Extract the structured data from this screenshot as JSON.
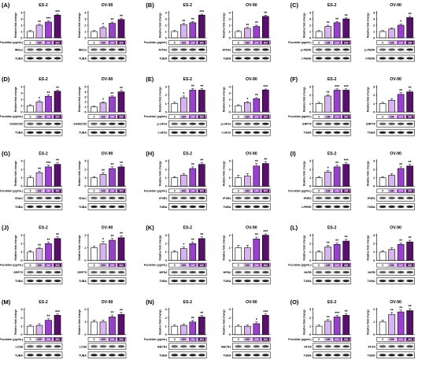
{
  "dose_label": "Fucoidan (μg/mL)",
  "doses": [
    "0",
    "100",
    "200",
    "300"
  ],
  "ylabel": "Relative fold change",
  "loading_control": "TUBA",
  "bar_colors": [
    "#ffffff",
    "#d9b3f0",
    "#9b3fd3",
    "#5a0f6e"
  ],
  "chart_data": [
    {
      "letter": "(A)",
      "type": "bar",
      "cell": "ES-2",
      "protein": "IRE1α",
      "ylim": [
        0,
        4
      ],
      "ticks": [
        0,
        1,
        2,
        3,
        4
      ],
      "values": [
        1.0,
        2.0,
        2.5,
        3.6
      ],
      "errors": [
        0.15,
        0.15,
        0.2,
        0.15
      ],
      "marks": [
        "",
        "**",
        "***",
        "***"
      ],
      "bottom": [
        "IRE1α",
        "TUBA"
      ]
    },
    {
      "letter": "",
      "type": "bar",
      "cell": "OV-90",
      "protein": "IRE1α",
      "ylim": [
        0,
        4
      ],
      "ticks": [
        0,
        1,
        2,
        3,
        4
      ],
      "values": [
        1.0,
        1.6,
        2.3,
        2.9
      ],
      "errors": [
        0.15,
        0.2,
        0.2,
        0.2
      ],
      "marks": [
        "",
        "*",
        "**",
        "**"
      ],
      "bottom": [
        "IRE1α",
        "TUBA"
      ]
    },
    {
      "letter": "(B)",
      "type": "bar",
      "cell": "ES-2",
      "protein": "ATF6α",
      "ylim": [
        0,
        4
      ],
      "ticks": [
        0,
        1,
        2,
        3,
        4
      ],
      "values": [
        1.0,
        2.1,
        2.4,
        3.6
      ],
      "errors": [
        0.15,
        0.2,
        0.2,
        0.15
      ],
      "marks": [
        "",
        "**",
        "**",
        "***"
      ],
      "bottom": [
        "ATF6α",
        "TUBA"
      ]
    },
    {
      "letter": "",
      "type": "bar",
      "cell": "OV-90",
      "protein": "ATF6α",
      "ylim": [
        0,
        4
      ],
      "ticks": [
        0,
        1,
        2,
        3,
        4
      ],
      "values": [
        1.0,
        1.5,
        1.8,
        3.4
      ],
      "errors": [
        0.15,
        0.15,
        0.2,
        0.2
      ],
      "marks": [
        "",
        "**",
        "**",
        "**"
      ],
      "bottom": [
        "ATF6α",
        "TUBA"
      ]
    },
    {
      "letter": "(C)",
      "type": "bar",
      "cell": "ES-2",
      "protein": "p-PERK",
      "ylim": [
        0,
        4
      ],
      "ticks": [
        0,
        1,
        2,
        3,
        4
      ],
      "values": [
        1.0,
        1.8,
        2.4,
        3.0
      ],
      "errors": [
        0.15,
        0.2,
        0.2,
        0.15
      ],
      "marks": [
        "",
        "**",
        "**",
        "**"
      ],
      "bottom": [
        "p-PERK",
        "t-PERK"
      ]
    },
    {
      "letter": "",
      "type": "bar",
      "cell": "OV-90",
      "protein": "p-PERK",
      "ylim": [
        0,
        4
      ],
      "ticks": [
        0,
        1,
        2,
        3,
        4
      ],
      "values": [
        1.0,
        1.4,
        2.0,
        3.2
      ],
      "errors": [
        0.15,
        0.15,
        0.2,
        0.2
      ],
      "marks": [
        "",
        "",
        "*",
        "**"
      ],
      "bottom": [
        "p-PERK",
        "t-PERK"
      ]
    },
    {
      "letter": "(D)",
      "type": "bar",
      "cell": "ES-2",
      "protein": "GADD153",
      "ylim": [
        0,
        4
      ],
      "ticks": [
        0,
        1,
        2,
        3,
        4
      ],
      "values": [
        1.0,
        1.6,
        2.5,
        3.3
      ],
      "errors": [
        0.15,
        0.2,
        0.2,
        0.2
      ],
      "marks": [
        "",
        "*",
        "**",
        "**"
      ],
      "bottom": [
        "GADD153",
        "TUBA"
      ]
    },
    {
      "letter": "",
      "type": "bar",
      "cell": "OV-90",
      "protein": "GADD153",
      "ylim": [
        0,
        5
      ],
      "ticks": [
        0,
        1,
        2,
        3,
        4,
        5
      ],
      "values": [
        1.0,
        1.8,
        3.0,
        4.0
      ],
      "errors": [
        0.15,
        0.2,
        0.2,
        0.3
      ],
      "marks": [
        "",
        "*",
        "**",
        "**"
      ],
      "bottom": [
        "GADD153",
        "TUBA"
      ]
    },
    {
      "letter": "(E)",
      "type": "bar",
      "cell": "ES-2",
      "protein": "p-eIF2α",
      "ylim": [
        0,
        3
      ],
      "ticks": [
        0,
        1,
        2,
        3
      ],
      "values": [
        1.0,
        1.7,
        2.6,
        2.6
      ],
      "errors": [
        0.2,
        0.2,
        0.2,
        0.2
      ],
      "marks": [
        "",
        "*",
        "**",
        "**"
      ],
      "bottom": [
        "p-eIF2α",
        "t-eIF2α"
      ]
    },
    {
      "letter": "",
      "type": "bar",
      "cell": "OV-90",
      "protein": "p-eIF2α",
      "ylim": [
        0,
        4
      ],
      "ticks": [
        0,
        1,
        2,
        3,
        4
      ],
      "values": [
        1.0,
        1.5,
        2.1,
        3.5
      ],
      "errors": [
        0.15,
        0.15,
        0.2,
        0.15
      ],
      "marks": [
        "",
        "*",
        "**",
        "***"
      ],
      "bottom": [
        "p-eIF2α",
        "t-eIF2α"
      ]
    },
    {
      "letter": "(F)",
      "type": "bar",
      "cell": "ES-2",
      "protein": "GRP78",
      "ylim": [
        0,
        3
      ],
      "ticks": [
        0,
        1,
        2,
        3
      ],
      "values": [
        1.0,
        1.9,
        2.6,
        2.6
      ],
      "errors": [
        0.15,
        0.15,
        0.15,
        0.15
      ],
      "marks": [
        "",
        "**",
        "***",
        "***"
      ],
      "bottom": [
        "GRP78",
        "TUBA"
      ]
    },
    {
      "letter": "",
      "type": "bar",
      "cell": "OV-90",
      "protein": "GRP78",
      "ylim": [
        0,
        3
      ],
      "ticks": [
        0,
        1,
        2,
        3
      ],
      "values": [
        1.0,
        1.4,
        2.1,
        2.4
      ],
      "errors": [
        0.15,
        0.2,
        0.2,
        0.2
      ],
      "marks": [
        "",
        "",
        "**",
        "**"
      ],
      "bottom": [
        "GRP78",
        "TUBA"
      ]
    },
    {
      "letter": "(G)",
      "type": "bar",
      "cell": "ES-2",
      "protein": "VDAC",
      "ylim": [
        0,
        3
      ],
      "ticks": [
        0,
        1,
        2,
        3
      ],
      "values": [
        1.0,
        1.6,
        2.3,
        2.6
      ],
      "errors": [
        0.2,
        0.2,
        0.2,
        0.2
      ],
      "marks": [
        "",
        "**",
        "***",
        "**"
      ],
      "bottom": [
        "VDAC",
        "TUBA"
      ]
    },
    {
      "letter": "",
      "type": "bar",
      "cell": "OV-90",
      "protein": "VDAC",
      "ylim": [
        0,
        3
      ],
      "ticks": [
        0,
        1,
        2,
        3
      ],
      "values": [
        1.0,
        1.4,
        2.1,
        2.3
      ],
      "errors": [
        0.15,
        0.2,
        0.2,
        0.2
      ],
      "marks": [
        "",
        "**",
        "**",
        "**"
      ],
      "bottom": [
        "VDAC",
        "TUBA"
      ]
    },
    {
      "letter": "(H)",
      "type": "bar",
      "cell": "ES-2",
      "protein": "IP3R1",
      "ylim": [
        0,
        3
      ],
      "ticks": [
        0,
        1,
        2,
        3
      ],
      "values": [
        1.0,
        1.3,
        2.1,
        2.6
      ],
      "errors": [
        0.15,
        0.2,
        0.2,
        0.2
      ],
      "marks": [
        "",
        "",
        "**",
        "**"
      ],
      "bottom": [
        "IP3R1",
        "TUBA"
      ]
    },
    {
      "letter": "",
      "type": "bar",
      "cell": "OV-90",
      "protein": "IP3R1",
      "ylim": [
        0,
        3
      ],
      "ticks": [
        0,
        1,
        2,
        3
      ],
      "values": [
        1.0,
        1.2,
        2.4,
        2.7
      ],
      "errors": [
        0.3,
        0.3,
        0.3,
        0.2
      ],
      "marks": [
        "",
        "",
        "**",
        "**"
      ],
      "bottom": [
        "IP3R1",
        "TUBA"
      ]
    },
    {
      "letter": "(I)",
      "type": "bar",
      "cell": "ES-2",
      "protein": "IP3R2",
      "ylim": [
        0,
        3
      ],
      "ticks": [
        0,
        1,
        2,
        3
      ],
      "values": [
        1.0,
        1.7,
        2.3,
        2.6
      ],
      "errors": [
        0.15,
        0.2,
        0.2,
        0.2
      ],
      "marks": [
        "",
        "*",
        "**",
        "***"
      ],
      "bottom": [
        "IP3R2",
        "t-PERK"
      ]
    },
    {
      "letter": "",
      "type": "bar",
      "cell": "OV-90",
      "protein": "IP3R2",
      "ylim": [
        0,
        3
      ],
      "ticks": [
        0,
        1,
        2,
        3
      ],
      "values": [
        1.0,
        1.3,
        2.1,
        2.4
      ],
      "errors": [
        0.15,
        0.2,
        0.2,
        0.2
      ],
      "marks": [
        "",
        "",
        "**",
        "**"
      ],
      "bottom": [
        "IP3R2",
        "TUBA"
      ]
    },
    {
      "letter": "(J)",
      "type": "bar",
      "cell": "ES-2",
      "protein": "GRP75",
      "ylim": [
        0,
        3
      ],
      "ticks": [
        0,
        1,
        2,
        3
      ],
      "values": [
        1.0,
        1.4,
        2.0,
        2.6
      ],
      "errors": [
        0.15,
        0.15,
        0.2,
        0.2
      ],
      "marks": [
        "",
        "**",
        "**",
        "**"
      ],
      "bottom": [
        "GRP75",
        "TUBA"
      ]
    },
    {
      "letter": "",
      "type": "bar",
      "cell": "OV-90",
      "protein": "GRP75",
      "ylim": [
        0,
        2
      ],
      "ticks": [
        0,
        1,
        2
      ],
      "values": [
        1.0,
        1.3,
        1.6,
        1.8
      ],
      "errors": [
        0.15,
        0.2,
        0.15,
        0.15
      ],
      "marks": [
        "",
        "*",
        "**",
        "**"
      ],
      "bottom": [
        "GRP75",
        "TUBA"
      ]
    },
    {
      "letter": "(K)",
      "type": "bar",
      "cell": "ES-2",
      "protein": "MFN2",
      "ylim": [
        0,
        3
      ],
      "ticks": [
        0,
        1,
        2,
        3
      ],
      "values": [
        1.0,
        1.4,
        2.0,
        2.6
      ],
      "errors": [
        0.15,
        0.2,
        0.2,
        0.2
      ],
      "marks": [
        "",
        "*",
        "**",
        "**"
      ],
      "bottom": [
        "MFN2",
        "TUBA"
      ]
    },
    {
      "letter": "",
      "type": "bar",
      "cell": "OV-90",
      "protein": "MFN2",
      "ylim": [
        0,
        2
      ],
      "ticks": [
        0,
        1,
        2
      ],
      "values": [
        1.0,
        1.0,
        1.7,
        2.0
      ],
      "errors": [
        0.2,
        0.2,
        0.15,
        0.1
      ],
      "marks": [
        "",
        "",
        "**",
        "***"
      ],
      "bottom": [
        "MFN2",
        "TUBA"
      ]
    },
    {
      "letter": "(L)",
      "type": "bar",
      "cell": "ES-2",
      "protein": "VAPB",
      "ylim": [
        0,
        3
      ],
      "ticks": [
        0,
        1,
        2,
        3
      ],
      "values": [
        1.0,
        1.6,
        1.9,
        2.3
      ],
      "errors": [
        0.15,
        0.2,
        0.2,
        0.2
      ],
      "marks": [
        "",
        "**",
        "**",
        "**"
      ],
      "bottom": [
        "VAPB",
        "TUBA"
      ]
    },
    {
      "letter": "",
      "type": "bar",
      "cell": "OV-90",
      "protein": "VAPB",
      "ylim": [
        0,
        3
      ],
      "ticks": [
        0,
        1,
        2,
        3
      ],
      "values": [
        1.0,
        1.3,
        1.9,
        2.2
      ],
      "errors": [
        0.15,
        0.2,
        0.2,
        0.2
      ],
      "marks": [
        "",
        "",
        "**",
        "**"
      ],
      "bottom": [
        "VAPB",
        "TUBA"
      ]
    },
    {
      "letter": "(M)",
      "type": "bar",
      "cell": "ES-2",
      "protein": "LC3B",
      "ylim": [
        0,
        3
      ],
      "ticks": [
        0,
        1,
        2,
        3
      ],
      "values": [
        1.0,
        1.1,
        1.7,
        2.3
      ],
      "errors": [
        0.15,
        0.2,
        0.2,
        0.15
      ],
      "marks": [
        "",
        "",
        "**",
        "***"
      ],
      "bottom": [
        "LC3B",
        "TUBA"
      ]
    },
    {
      "letter": "",
      "type": "bar",
      "cell": "OV-90",
      "protein": "LC3B",
      "ylim": [
        0,
        2
      ],
      "ticks": [
        0,
        1,
        2
      ],
      "values": [
        1.0,
        1.0,
        1.4,
        1.6
      ],
      "errors": [
        0.15,
        0.15,
        0.15,
        0.15
      ],
      "marks": [
        "",
        "",
        "**",
        "**"
      ],
      "bottom": [
        "LC3B",
        "TUBA"
      ]
    },
    {
      "letter": "(N)",
      "type": "bar",
      "cell": "ES-2",
      "protein": "BECN1",
      "ylim": [
        0,
        3
      ],
      "ticks": [
        0,
        1,
        2,
        3
      ],
      "values": [
        1.0,
        1.1,
        1.5,
        2.1
      ],
      "errors": [
        0.15,
        0.15,
        0.2,
        0.2
      ],
      "marks": [
        "",
        "",
        "**",
        "**"
      ],
      "bottom": [
        "BECN1",
        "TUBA"
      ]
    },
    {
      "letter": "",
      "type": "bar",
      "cell": "OV-90",
      "protein": "BECN1",
      "ylim": [
        0,
        3
      ],
      "ticks": [
        0,
        1,
        2,
        3
      ],
      "values": [
        1.0,
        1.0,
        1.3,
        2.3
      ],
      "errors": [
        0.15,
        0.15,
        0.2,
        0.15
      ],
      "marks": [
        "",
        "",
        "*",
        "***"
      ],
      "bottom": [
        "BECN1",
        "TUBA"
      ]
    },
    {
      "letter": "(O)",
      "type": "bar",
      "cell": "ES-2",
      "protein": "ATG5",
      "ylim": [
        0,
        3
      ],
      "ticks": [
        0,
        1,
        2,
        3
      ],
      "values": [
        1.0,
        1.6,
        2.1,
        2.3
      ],
      "errors": [
        0.15,
        0.2,
        0.2,
        0.2
      ],
      "marks": [
        "",
        "**",
        "***",
        "**"
      ],
      "bottom": [
        "ATG5",
        "TUBA"
      ]
    },
    {
      "letter": "",
      "type": "bar",
      "cell": "OV-90",
      "protein": "ATG5",
      "ylim": [
        0,
        2
      ],
      "ticks": [
        0,
        1,
        2
      ],
      "values": [
        1.0,
        1.6,
        1.8,
        1.9
      ],
      "errors": [
        0.15,
        0.15,
        0.15,
        0.15
      ],
      "marks": [
        "",
        "**",
        "**",
        "**"
      ],
      "bottom": [
        "ATG5",
        "TUBA"
      ]
    }
  ]
}
